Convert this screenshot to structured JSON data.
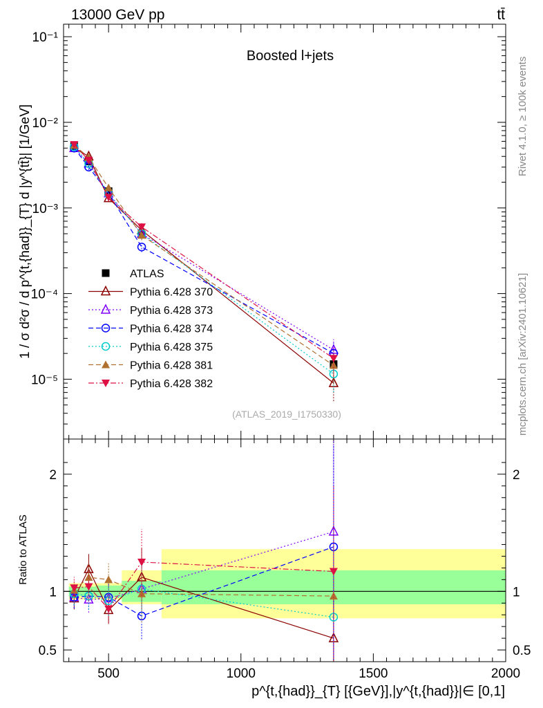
{
  "header": {
    "energy": "13000 GeV pp",
    "process": "tt̄",
    "side_rivet": "Rivet 4.1.0, ≥ 100k events",
    "side_mcplots": "mcplots.cern.ch [arXiv:2401.10621]"
  },
  "chart_data": [
    {
      "type": "line",
      "panel": "main",
      "title": "Boosted l+jets",
      "watermark": "(ATLAS_2019_I1750330)",
      "ylabel": "1 / σ d²σ / d p^{t,{had}}_{T} d |y^{tt̄}| [1/GeV]",
      "yscale": "log",
      "ylim": [
        2e-06,
        0.14
      ],
      "xlim": [
        330,
        2000
      ],
      "ytick_labels": [
        "10⁻⁵",
        "10⁻⁴",
        "10⁻³",
        "10⁻²",
        "10⁻¹"
      ],
      "x": [
        370,
        425,
        500,
        625,
        1350
      ],
      "series": [
        {
          "name": "ATLAS",
          "color": "#000000",
          "marker": "square",
          "values": [
            0.0053,
            0.0035,
            0.00157,
            0.00049,
            1.5e-05
          ]
        },
        {
          "name": "Pythia 6.428 370",
          "color": "#8b0000",
          "marker": "triangle-open",
          "dash": "",
          "values": [
            0.005,
            0.004,
            0.0013,
            0.00055,
            9e-06
          ]
        },
        {
          "name": "Pythia 6.428 373",
          "color": "#8000ff",
          "marker": "triangle-open",
          "dash": "2,3",
          "values": [
            0.005,
            0.0033,
            0.00148,
            0.0005,
            2.2e-05
          ]
        },
        {
          "name": "Pythia 6.428 374",
          "color": "#0000ff",
          "marker": "circle-open",
          "dash": "7,4",
          "values": [
            0.005,
            0.003,
            0.00149,
            0.00035,
            2e-05
          ]
        },
        {
          "name": "Pythia 6.428 375",
          "color": "#00cccc",
          "marker": "circle-open",
          "dash": "2,3",
          "values": [
            0.0052,
            0.0033,
            0.00145,
            0.0005,
            1.15e-05
          ]
        },
        {
          "name": "Pythia 6.428 381",
          "color": "#b07030",
          "marker": "triangle-up",
          "dash": "7,4",
          "values": [
            0.0054,
            0.0039,
            0.00172,
            0.00048,
            1.45e-05
          ]
        },
        {
          "name": "Pythia 6.428 382",
          "color": "#dd1144",
          "marker": "triangle-down",
          "dash": "8,3,2,3",
          "values": [
            0.0055,
            0.0036,
            0.00133,
            0.0006,
            1.75e-05
          ]
        }
      ]
    },
    {
      "type": "line",
      "panel": "ratio",
      "ylabel": "Ratio to ATLAS",
      "ylim": [
        0.4,
        2.3
      ],
      "xlim": [
        330,
        2000
      ],
      "xlabel": "p^{t,{had}}_{T} [{GeV}],|y^{t,{had}}|∈ [0,1]",
      "xtick_labels": [
        "500",
        "1000",
        "1500",
        "2000"
      ],
      "ytick_labels": [
        "0.5",
        "1",
        "2"
      ],
      "band_edges": [
        350,
        400,
        450,
        550,
        700,
        2000
      ],
      "band_inner": [
        [
          0.96,
          1.04
        ],
        [
          0.96,
          1.04
        ],
        [
          0.95,
          1.05
        ],
        [
          0.91,
          1.09
        ],
        [
          0.89,
          1.18
        ]
      ],
      "band_outer": [
        [
          0.93,
          1.07
        ],
        [
          0.93,
          1.07
        ],
        [
          0.93,
          1.07
        ],
        [
          0.89,
          1.18
        ],
        [
          0.77,
          1.36
        ]
      ],
      "x": [
        370,
        425,
        500,
        625,
        1350
      ],
      "series": [
        {
          "name": "Pythia 6.428 370",
          "values": [
            0.94,
            1.19,
            0.84,
            1.12,
            0.6
          ]
        },
        {
          "name": "Pythia 6.428 373",
          "values": [
            0.95,
            0.93,
            0.94,
            1.02,
            1.51
          ]
        },
        {
          "name": "Pythia 6.428 374",
          "values": [
            0.95,
            0.96,
            0.95,
            0.79,
            1.38
          ]
        },
        {
          "name": "Pythia 6.428 375",
          "values": [
            0.98,
            0.96,
            0.92,
            1.02,
            0.78
          ]
        },
        {
          "name": "Pythia 6.428 381",
          "values": [
            1.01,
            1.12,
            1.1,
            0.98,
            0.96
          ]
        },
        {
          "name": "Pythia 6.428 382",
          "values": [
            1.03,
            1.04,
            0.85,
            1.25,
            1.17
          ]
        }
      ]
    }
  ]
}
